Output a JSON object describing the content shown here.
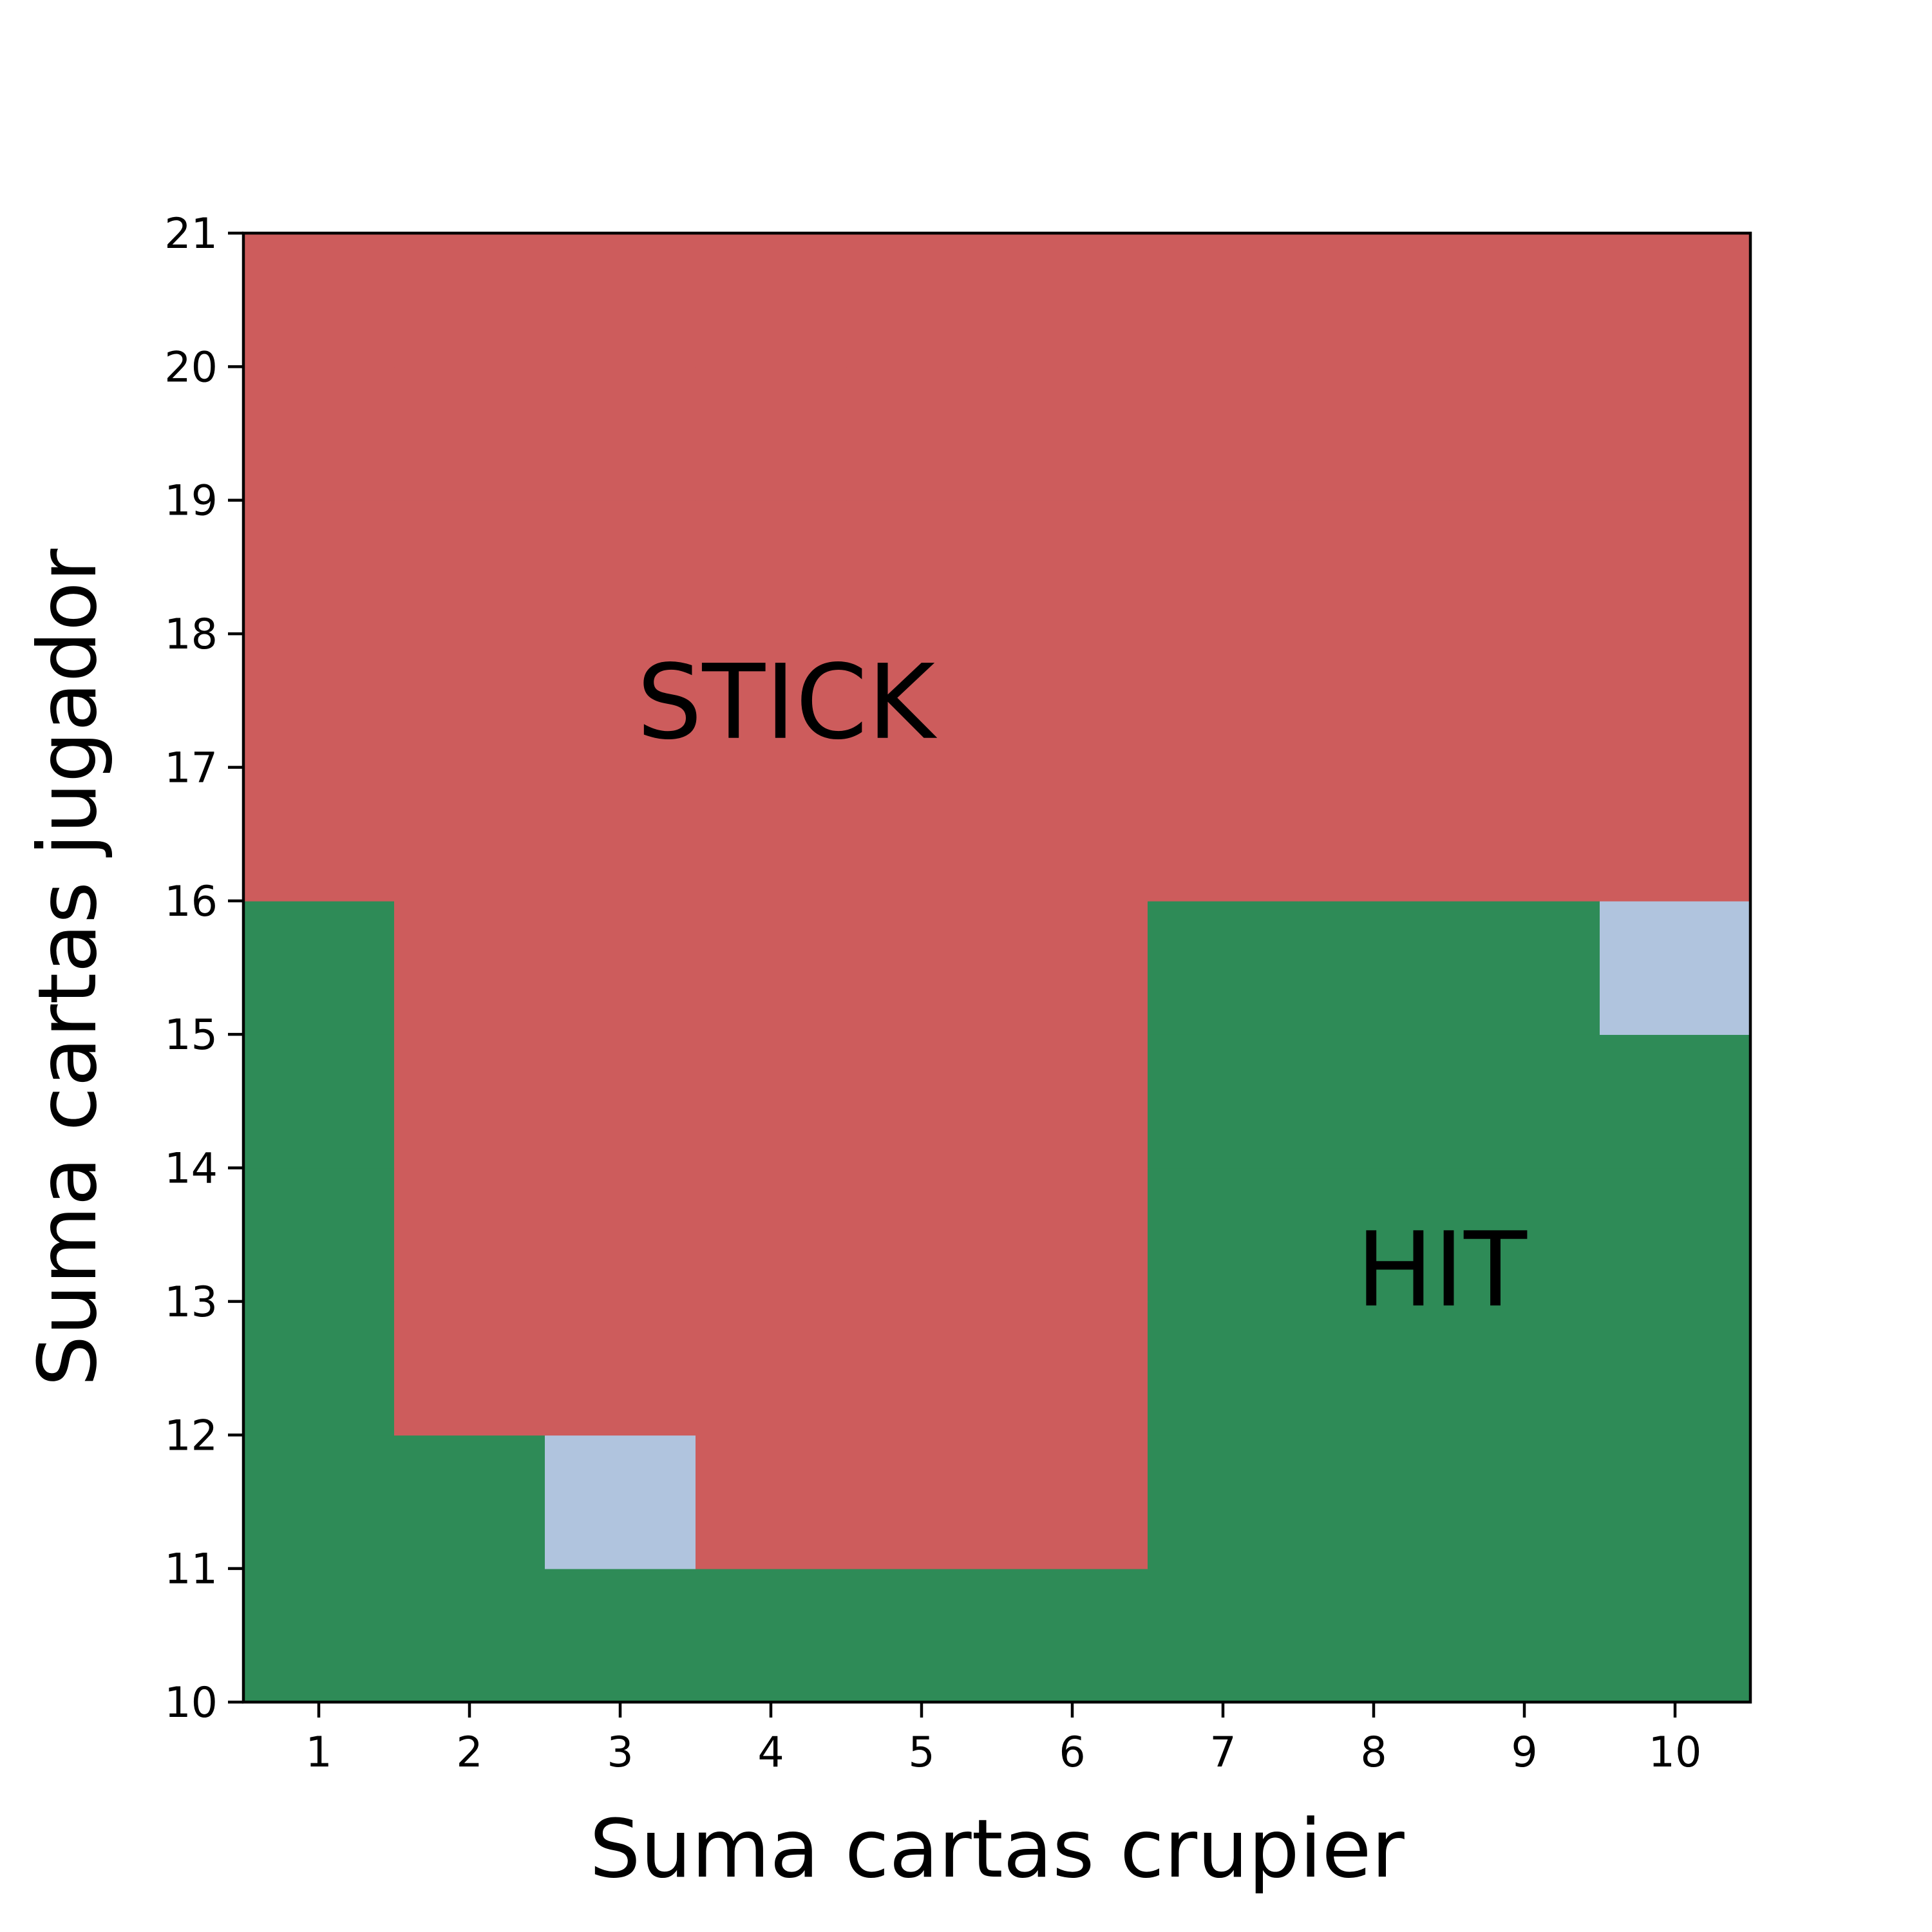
{
  "chart_data": {
    "type": "heatmap",
    "title": "",
    "xlabel": "Suma cartas crupier",
    "ylabel": "Suma cartas jugador",
    "x_ticks": [
      1,
      2,
      3,
      4,
      5,
      6,
      7,
      8,
      9,
      10
    ],
    "y_ticks": [
      10,
      11,
      12,
      13,
      14,
      15,
      16,
      17,
      18,
      19,
      20,
      21
    ],
    "xlim": [
      0.5,
      10.5
    ],
    "ylim": [
      10,
      21
    ],
    "grid": false,
    "categories": [
      "stick",
      "hit",
      "other"
    ],
    "colors": {
      "stick": "#CD5C5C",
      "hit": "#2E8B57",
      "other": "#B0C4DE"
    },
    "rows_from_bottom": [
      [
        "hit",
        "hit",
        "hit",
        "hit",
        "hit",
        "hit",
        "hit",
        "hit",
        "hit",
        "hit"
      ],
      [
        "hit",
        "hit",
        "other",
        "stick",
        "stick",
        "stick",
        "hit",
        "hit",
        "hit",
        "hit"
      ],
      [
        "hit",
        "stick",
        "stick",
        "stick",
        "stick",
        "stick",
        "hit",
        "hit",
        "hit",
        "hit"
      ],
      [
        "hit",
        "stick",
        "stick",
        "stick",
        "stick",
        "stick",
        "hit",
        "hit",
        "hit",
        "hit"
      ],
      [
        "hit",
        "stick",
        "stick",
        "stick",
        "stick",
        "stick",
        "hit",
        "hit",
        "hit",
        "hit"
      ],
      [
        "hit",
        "stick",
        "stick",
        "stick",
        "stick",
        "stick",
        "hit",
        "hit",
        "hit",
        "other"
      ],
      [
        "stick",
        "stick",
        "stick",
        "stick",
        "stick",
        "stick",
        "stick",
        "stick",
        "stick",
        "stick"
      ],
      [
        "stick",
        "stick",
        "stick",
        "stick",
        "stick",
        "stick",
        "stick",
        "stick",
        "stick",
        "stick"
      ],
      [
        "stick",
        "stick",
        "stick",
        "stick",
        "stick",
        "stick",
        "stick",
        "stick",
        "stick",
        "stick"
      ],
      [
        "stick",
        "stick",
        "stick",
        "stick",
        "stick",
        "stick",
        "stick",
        "stick",
        "stick",
        "stick"
      ],
      [
        "stick",
        "stick",
        "stick",
        "stick",
        "stick",
        "stick",
        "stick",
        "stick",
        "stick",
        "stick"
      ]
    ],
    "annotations": [
      {
        "text": "STICK",
        "x": 4.1,
        "y": 17.5
      },
      {
        "text": "HIT",
        "x": 8.45,
        "y": 13.25
      }
    ]
  }
}
